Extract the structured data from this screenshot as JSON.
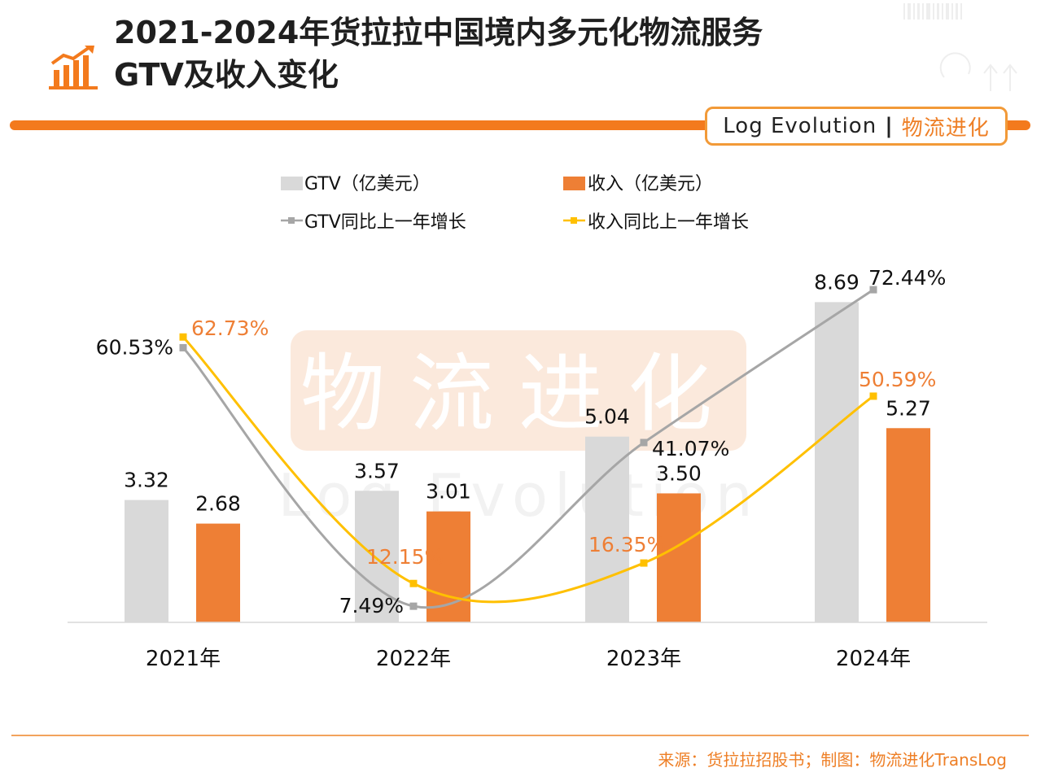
{
  "title": {
    "line1": "2021-2024年货拉拉中国境内多元化物流服务",
    "line2": "GTV及收入变化"
  },
  "brand": {
    "name_en": "Log Evolution",
    "separator": "|",
    "name_cn": "物流进化",
    "watermark_cn": "物流进化",
    "watermark_en": "Log Evolution"
  },
  "footer": {
    "source": "来源：货拉拉招股书；制图：物流进化TransLog"
  },
  "colors": {
    "accent": "#f37a1d",
    "gtv_bar": "#d9d9d9",
    "revenue_bar": "#ee7f35",
    "gtv_line": "#a6a6a6",
    "revenue_line": "#ffc000",
    "revenue_growth_label": "#ee7f35"
  },
  "chart_data": {
    "type": "bar",
    "categories": [
      "2021年",
      "2022年",
      "2023年",
      "2024年"
    ],
    "series": [
      {
        "name": "GTV（亿美元）",
        "type": "bar",
        "values": [
          3.32,
          3.57,
          5.04,
          8.69
        ],
        "labels": [
          "3.32",
          "3.57",
          "5.04",
          "8.69"
        ]
      },
      {
        "name": "收入（亿美元）",
        "type": "bar",
        "values": [
          2.68,
          3.01,
          3.5,
          5.27
        ],
        "labels": [
          "2.68",
          "3.01",
          "3.50",
          "5.27"
        ]
      },
      {
        "name": "GTV同比上一年增长",
        "type": "line",
        "values": [
          60.53,
          7.49,
          41.07,
          72.44
        ],
        "labels": [
          "60.53%",
          "7.49%",
          "41.07%",
          "72.44%"
        ]
      },
      {
        "name": "收入同比上一年增长",
        "type": "line",
        "values": [
          62.73,
          12.15,
          16.35,
          50.59
        ],
        "labels": [
          "62.73%",
          "12.15%",
          "16.35%",
          "50.59%"
        ]
      }
    ],
    "legend_position": "top",
    "grid": false
  }
}
